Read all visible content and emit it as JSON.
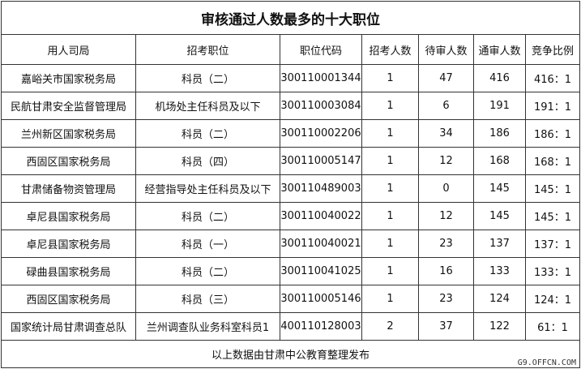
{
  "title": "审核通过人数最多的十大职位",
  "table": {
    "header": [
      "用人司局",
      "招考职位",
      "职位代码",
      "招考人数",
      "待审人数",
      "通审人数",
      "竞争比例"
    ],
    "rows": [
      [
        "嘉峪关市国家税务局",
        "科员（二）",
        "300110001344",
        "1",
        "47",
        "416",
        "416：1"
      ],
      [
        "民航甘肃安全监督管理局",
        "机场处主任科员及以下",
        "300110003084",
        "1",
        "6",
        "191",
        "191：1"
      ],
      [
        "兰州新区国家税务局",
        "科员（二）",
        "300110002206",
        "1",
        "34",
        "186",
        "186：1"
      ],
      [
        "西固区国家税务局",
        "科员（四）",
        "300110005147",
        "1",
        "12",
        "168",
        "168：1"
      ],
      [
        "甘肃储备物资管理局",
        "经营指导处主任科员及以下",
        "300110489003",
        "1",
        "0",
        "145",
        "145：1"
      ],
      [
        "卓尼县国家税务局",
        "科员（二）",
        "300110040022",
        "1",
        "12",
        "145",
        "145：1"
      ],
      [
        "卓尼县国家税务局",
        "科员（一）",
        "300110040021",
        "1",
        "23",
        "137",
        "137：1"
      ],
      [
        "碌曲县国家税务局",
        "科员（二）",
        "300110041025",
        "1",
        "16",
        "133",
        "133：1"
      ],
      [
        "西固区国家税务局",
        "科员（三）",
        "300110005146",
        "1",
        "23",
        "124",
        "124：1"
      ],
      [
        "国家统计局甘肃调查总队",
        "兰州调查队业务科室科员1",
        "400110128003",
        "2",
        "37",
        "122",
        "61：1"
      ]
    ],
    "footer": "以上数据由甘肃中公教育整理发布"
  },
  "watermark": "G9.OFFCN.COM"
}
